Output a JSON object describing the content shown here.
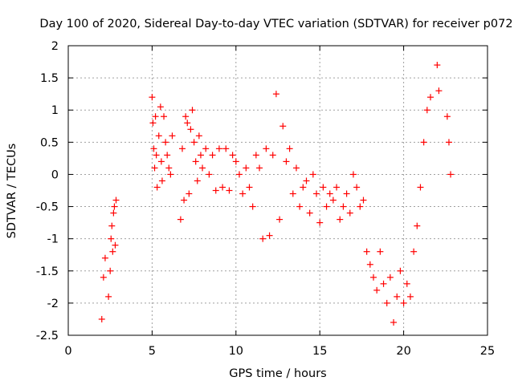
{
  "chart_data": {
    "type": "scatter",
    "title": "Day 100 of 2020, Sidereal Day-to-day VTEC variation (SDTVAR) for receiver p072",
    "xlabel": "GPS time / hours",
    "ylabel": "SDTVAR / TECUs",
    "xlim": [
      0,
      25
    ],
    "ylim": [
      -2.5,
      2
    ],
    "xticks": [
      0,
      5,
      10,
      15,
      20,
      25
    ],
    "xtick_labels": [
      "0",
      "5",
      "10",
      "15",
      "20",
      "25"
    ],
    "yticks": [
      -2.5,
      -2,
      -1.5,
      -1,
      -0.5,
      0,
      0.5,
      1,
      1.5,
      2
    ],
    "ytick_labels": [
      "-2.5",
      "-2",
      "-1.5",
      "-1",
      "-0.5",
      "0",
      "0.5",
      "1",
      "1.5",
      "2"
    ],
    "grid": true,
    "marker": "+",
    "color": "#ff0000",
    "series": [
      {
        "name": "SDTVAR",
        "x": [
          2.0,
          2.1,
          2.2,
          2.4,
          2.5,
          2.55,
          2.6,
          2.65,
          2.7,
          2.75,
          2.8,
          2.85,
          5.0,
          5.05,
          5.1,
          5.15,
          5.2,
          5.25,
          5.3,
          5.4,
          5.5,
          5.55,
          5.6,
          5.7,
          5.8,
          5.9,
          6.0,
          6.1,
          6.2,
          6.7,
          6.8,
          6.9,
          7.0,
          7.1,
          7.2,
          7.3,
          7.4,
          7.5,
          7.6,
          7.7,
          7.8,
          7.9,
          8.0,
          8.2,
          8.4,
          8.6,
          8.8,
          9.0,
          9.2,
          9.4,
          9.6,
          9.8,
          10.0,
          10.2,
          10.4,
          10.6,
          10.8,
          11.0,
          11.2,
          11.4,
          11.6,
          11.8,
          12.0,
          12.2,
          12.4,
          12.6,
          12.8,
          13.0,
          13.2,
          13.4,
          13.6,
          13.8,
          14.0,
          14.2,
          14.4,
          14.6,
          14.8,
          15.0,
          15.2,
          15.4,
          15.6,
          15.8,
          16.0,
          16.2,
          16.4,
          16.6,
          16.8,
          17.0,
          17.2,
          17.4,
          17.6,
          17.8,
          18.0,
          18.2,
          18.4,
          18.6,
          18.8,
          19.0,
          19.2,
          19.4,
          19.6,
          19.8,
          20.0,
          20.2,
          20.4,
          20.6,
          20.8,
          21.0,
          21.2,
          21.4,
          21.6,
          22.0,
          22.1,
          22.6,
          22.7,
          22.8
        ],
        "y": [
          -2.25,
          -1.6,
          -1.3,
          -1.9,
          -1.5,
          -1.0,
          -0.8,
          -1.2,
          -0.6,
          -0.5,
          -1.1,
          -0.4,
          1.2,
          0.8,
          0.4,
          0.1,
          0.9,
          0.3,
          -0.2,
          0.6,
          1.05,
          0.2,
          -0.1,
          0.9,
          0.5,
          0.3,
          0.1,
          0.0,
          0.6,
          -0.7,
          0.4,
          -0.4,
          0.9,
          0.8,
          -0.3,
          0.7,
          1.0,
          0.5,
          0.2,
          -0.1,
          0.6,
          0.3,
          0.1,
          0.4,
          0.0,
          0.3,
          -0.25,
          0.4,
          -0.2,
          0.4,
          -0.25,
          0.3,
          0.2,
          0.0,
          -0.3,
          0.1,
          -0.2,
          -0.5,
          0.3,
          0.1,
          -1.0,
          0.4,
          -0.95,
          0.3,
          1.25,
          -0.7,
          0.75,
          0.2,
          0.4,
          -0.3,
          0.1,
          -0.5,
          -0.2,
          -0.1,
          -0.6,
          0.0,
          -0.3,
          -0.75,
          -0.2,
          -0.5,
          -0.3,
          -0.4,
          -0.2,
          -0.7,
          -0.5,
          -0.3,
          -0.6,
          0.0,
          -0.2,
          -0.5,
          -0.4,
          -1.2,
          -1.4,
          -1.6,
          -1.8,
          -1.2,
          -1.7,
          -2.0,
          -1.6,
          -2.3,
          -1.9,
          -1.5,
          -2.0,
          -1.7,
          -1.9,
          -1.2,
          -0.8,
          -0.2,
          0.5,
          1.0,
          1.2,
          1.7,
          1.3,
          0.9,
          0.5,
          0.0
        ]
      }
    ]
  }
}
